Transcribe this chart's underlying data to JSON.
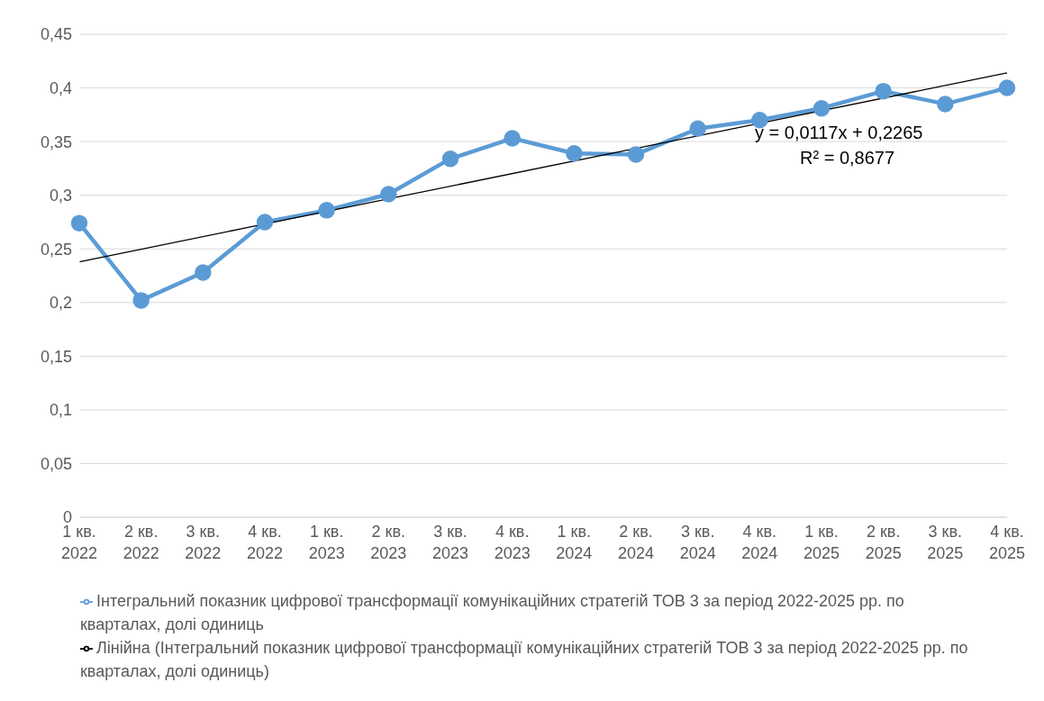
{
  "chart_data": {
    "type": "line",
    "categories": [
      "1 кв. 2022",
      "2 кв. 2022",
      "3 кв. 2022",
      "4 кв. 2022",
      "1 кв. 2023",
      "2 кв. 2023",
      "3 кв. 2023",
      "4 кв. 2023",
      "1 кв. 2024",
      "2 кв. 2024",
      "3 кв. 2024",
      "4 кв. 2024",
      "1 кв. 2025",
      "2 кв. 2025",
      "3 кв. 2025",
      "4 кв. 2025"
    ],
    "series": [
      {
        "name": "Інтегральний показник цифрової трансформації комунікаційних стратегій ТОВ 3 за період 2022-2025 рр. по кварталах, долі одиниць",
        "color": "#5b9bd5",
        "marker": "circle",
        "values": [
          0.274,
          0.202,
          0.228,
          0.275,
          0.286,
          0.301,
          0.334,
          0.353,
          0.339,
          0.338,
          0.362,
          0.37,
          0.381,
          0.397,
          0.385,
          0.4
        ]
      },
      {
        "name": "Лінійна (Інтегральний показник цифрової трансформації комунікаційних стратегій ТОВ 3 за період 2022-2025 рр. по кварталах, долі одиниць)",
        "color": "#000000",
        "marker": "none",
        "values": [
          0.238,
          null,
          null,
          null,
          null,
          null,
          null,
          null,
          null,
          null,
          null,
          null,
          null,
          null,
          null,
          0.414
        ]
      }
    ],
    "ylim": [
      0,
      0.45
    ],
    "yticks": [
      0,
      {
        "value": 0.05,
        "label": "0,05"
      },
      {
        "value": 0.1,
        "label": "0,1"
      },
      {
        "value": 0.15,
        "label": "0,15"
      },
      {
        "value": 0.2,
        "label": "0,2"
      },
      {
        "value": 0.25,
        "label": "0,25"
      },
      {
        "value": 0.3,
        "label": "0,3"
      },
      {
        "value": 0.35,
        "label": "0,35"
      },
      {
        "value": 0.4,
        "label": "0,4"
      },
      {
        "value": 0.45,
        "label": "0,45"
      }
    ],
    "grid": "y",
    "legend": "bottom",
    "annotations": [
      "y = 0,0117x + 0,2265",
      "R² = 0,8677"
    ]
  }
}
